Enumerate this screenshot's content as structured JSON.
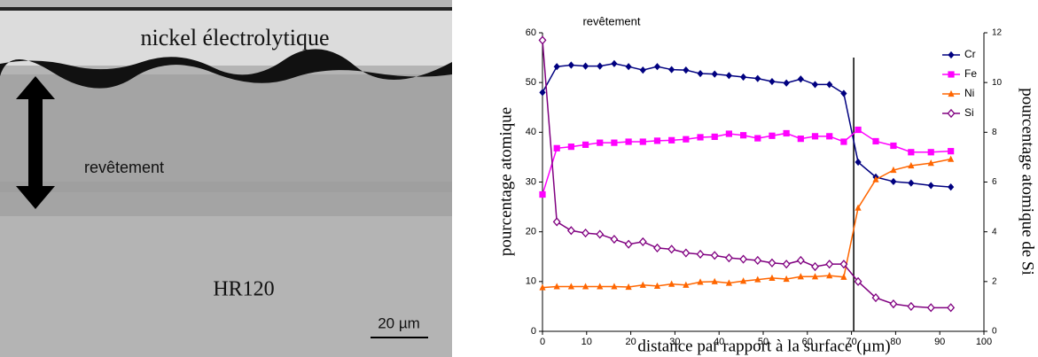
{
  "micrograph": {
    "top_label": "nickel électrolytique",
    "coating_label": "revêtement",
    "substrate_label": "HR120",
    "scale_label": "20 µm"
  },
  "chart_data": {
    "type": "line",
    "title": "revêtement",
    "x_label": "distance par rapport à la surface (µm)",
    "y_label": "pourcentage atomique",
    "y2_label": "pourcentage atomique de Si",
    "x": [
      0,
      3.25,
      6.5,
      9.75,
      13,
      16.25,
      19.5,
      22.75,
      26,
      29.25,
      32.5,
      35.75,
      39,
      42.25,
      45.5,
      48.75,
      52,
      55.25,
      58.5,
      61.75,
      65,
      68.25,
      71.5,
      75.5,
      79.5,
      83.5,
      88,
      92.5
    ],
    "series": [
      {
        "name": "Cr",
        "color": "#000080",
        "marker": "diamond",
        "values": [
          48,
          53.2,
          53.5,
          53.3,
          53.3,
          53.8,
          53.2,
          52.5,
          53.2,
          52.6,
          52.5,
          51.8,
          51.7,
          51.4,
          51.1,
          50.8,
          50.2,
          49.9,
          50.7,
          49.6,
          49.6,
          47.8,
          34,
          31,
          30.1,
          29.8,
          29.3,
          29
        ]
      },
      {
        "name": "Fe",
        "color": "#ff00ff",
        "marker": "square",
        "values": [
          27.5,
          36.8,
          37.1,
          37.5,
          37.9,
          37.9,
          38.1,
          38.1,
          38.3,
          38.4,
          38.6,
          39,
          39.1,
          39.7,
          39.4,
          38.8,
          39.3,
          39.8,
          38.7,
          39.2,
          39.2,
          38.1,
          40.5,
          38.2,
          37.3,
          36,
          36,
          36.2
        ]
      },
      {
        "name": "Ni",
        "color": "#ff6600",
        "marker": "triangle",
        "values": [
          8.8,
          9,
          9,
          9,
          9,
          9,
          8.9,
          9.3,
          9.1,
          9.5,
          9.3,
          9.9,
          10,
          9.7,
          10.1,
          10.4,
          10.7,
          10.5,
          11,
          11,
          11.2,
          10.9,
          24.8,
          30.5,
          32.4,
          33.3,
          33.8,
          34.6
        ]
      },
      {
        "name": "Si",
        "color": "#800080",
        "marker": "open-diamond",
        "axis": "y2",
        "values": [
          11.7,
          4.4,
          4.05,
          3.95,
          3.9,
          3.7,
          3.5,
          3.6,
          3.35,
          3.3,
          3.15,
          3.1,
          3.05,
          2.95,
          2.9,
          2.85,
          2.75,
          2.7,
          2.85,
          2.6,
          2.7,
          2.7,
          2.0,
          1.35,
          1.1,
          1.0,
          0.95,
          0.95
        ]
      }
    ],
    "vline_x": 70.5,
    "xlim": [
      0,
      100
    ],
    "xticks": [
      0,
      10,
      20,
      30,
      40,
      50,
      60,
      70,
      80,
      90,
      100
    ],
    "ylim": [
      0,
      60
    ],
    "yticks": [
      0,
      10,
      20,
      30,
      40,
      50,
      60
    ],
    "y2lim": [
      0,
      12
    ],
    "y2ticks": [
      0,
      2,
      4,
      6,
      8,
      10,
      12
    ],
    "legend": "top-right",
    "grid": false
  }
}
